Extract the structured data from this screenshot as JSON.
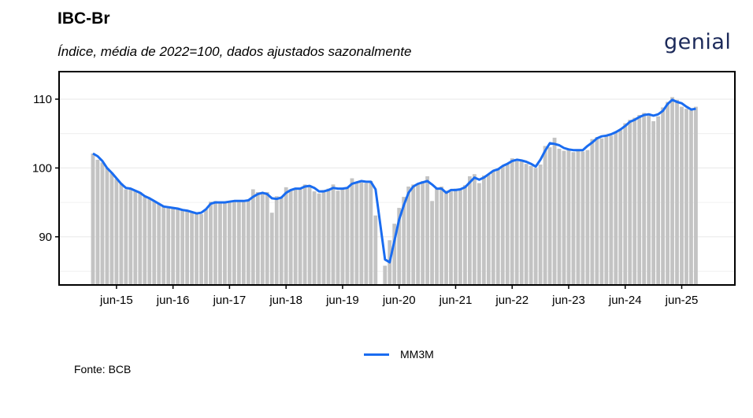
{
  "header": {
    "title": "IBC-Br",
    "subtitle": "Índice, média de 2022=100, dados ajustados sazonalmente",
    "logo_text": "genial"
  },
  "footer": {
    "source": "Fonte: BCB"
  },
  "colors": {
    "bars": "#c3c3c3",
    "line": "#1a6cf0",
    "logo": "#1c2a5a"
  },
  "chart_data": {
    "type": "bar",
    "title": "IBC-Br",
    "subtitle": "Índice, média de 2022=100, dados ajustados sazonalmente",
    "xlabel": "",
    "ylabel": "",
    "ylim": [
      83,
      114
    ],
    "yticks": [
      90,
      100,
      110
    ],
    "xticks": [
      "jun-15",
      "jun-16",
      "jun-17",
      "jun-18",
      "jun-19",
      "jun-20",
      "jun-21",
      "jun-22",
      "jun-23",
      "jun-24",
      "jun-25"
    ],
    "start_period": "jan-15",
    "grid": true,
    "legend_position": "bottom",
    "series": [
      {
        "name": "",
        "type": "bar",
        "values": [
          102.1,
          101.2,
          100.8,
          100.0,
          99.3,
          98.4,
          97.8,
          96.9,
          97.0,
          96.7,
          96.5,
          96.0,
          95.6,
          95.2,
          94.8,
          94.5,
          94.3,
          94.2,
          94.1,
          93.9,
          93.8,
          93.6,
          93.5,
          93.3,
          94.0,
          95.1,
          95.2,
          95.0,
          95.0,
          95.2,
          95.3,
          95.1,
          95.2,
          95.3,
          96.9,
          96.5,
          96.3,
          96.5,
          93.5,
          95.9,
          95.8,
          97.2,
          96.9,
          96.9,
          97.0,
          97.6,
          97.5,
          96.6,
          96.3,
          96.8,
          97.0,
          97.6,
          96.7,
          97.0,
          97.1,
          98.5,
          98.0,
          97.9,
          97.8,
          98.1,
          93.1,
          83.1,
          85.8,
          89.5,
          91.9,
          94.2,
          95.8,
          97.3,
          97.6,
          97.6,
          98.1,
          98.8,
          95.2,
          97.0,
          97.3,
          96.7,
          96.6,
          97.0,
          96.8,
          97.5,
          98.8,
          99.1,
          97.8,
          98.9,
          99.0,
          99.6,
          99.9,
          100.3,
          100.6,
          101.4,
          101.0,
          101.0,
          100.6,
          100.3,
          100.0,
          100.5,
          103.2,
          103.0,
          104.4,
          102.8,
          102.5,
          102.7,
          102.3,
          102.6,
          102.4,
          102.6,
          104.2,
          104.5,
          104.3,
          104.8,
          104.7,
          105.2,
          105.5,
          106.5,
          107.0,
          107.3,
          107.7,
          108.0,
          107.9,
          106.8,
          107.5,
          108.8,
          109.6,
          110.3,
          109.9,
          108.9,
          108.6,
          108.4,
          108.9
        ]
      },
      {
        "name": "MM3M",
        "type": "line",
        "values": [
          102.1,
          101.7,
          101.0,
          100.0,
          99.3,
          98.5,
          97.7,
          97.1,
          97.0,
          96.7,
          96.4,
          95.9,
          95.6,
          95.2,
          94.8,
          94.4,
          94.3,
          94.2,
          94.1,
          93.9,
          93.8,
          93.6,
          93.4,
          93.5,
          94.0,
          94.8,
          95.0,
          95.0,
          95.0,
          95.1,
          95.2,
          95.2,
          95.2,
          95.3,
          95.8,
          96.2,
          96.4,
          96.2,
          95.6,
          95.5,
          95.7,
          96.4,
          96.8,
          97.0,
          97.0,
          97.3,
          97.4,
          97.1,
          96.6,
          96.6,
          96.8,
          97.1,
          97.0,
          97.0,
          97.1,
          97.7,
          97.9,
          98.1,
          98.0,
          98.0,
          96.9,
          91.8,
          86.7,
          86.3,
          89.4,
          92.5,
          94.6,
          96.4,
          97.3,
          97.7,
          97.9,
          98.1,
          97.6,
          97.0,
          97.0,
          96.4,
          96.8,
          96.8,
          96.9,
          97.2,
          97.9,
          98.6,
          98.3,
          98.6,
          99.1,
          99.6,
          99.8,
          100.3,
          100.6,
          101.0,
          101.2,
          101.1,
          100.9,
          100.6,
          100.2,
          101.2,
          102.5,
          103.6,
          103.5,
          103.3,
          102.9,
          102.7,
          102.6,
          102.6,
          102.6,
          103.2,
          103.7,
          104.3,
          104.6,
          104.7,
          104.9,
          105.2,
          105.6,
          106.1,
          106.7,
          107.0,
          107.4,
          107.7,
          107.8,
          107.6,
          107.8,
          108.3,
          109.3,
          109.9,
          109.6,
          109.4,
          108.9,
          108.5,
          108.6
        ]
      }
    ]
  }
}
